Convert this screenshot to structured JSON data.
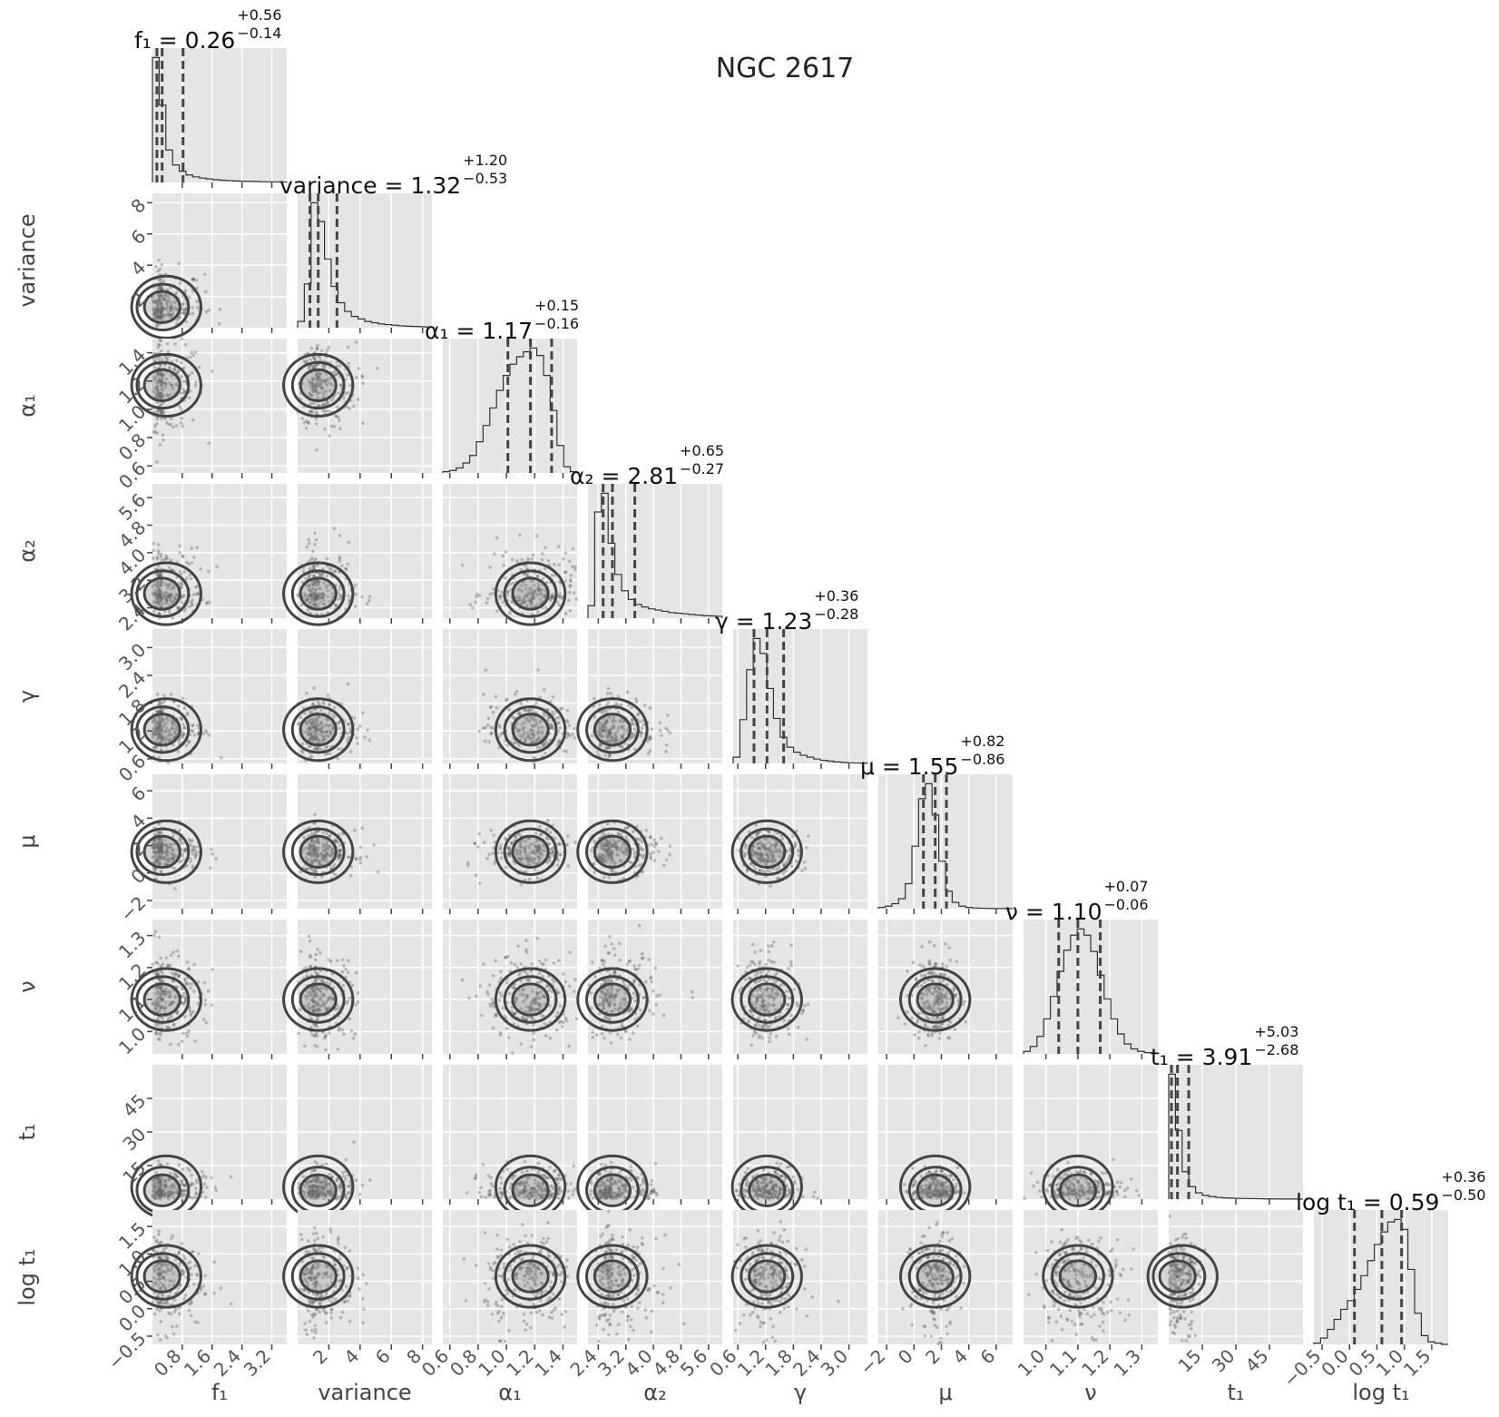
{
  "title": "NGC 2617",
  "chart_data": {
    "type": "corner",
    "parameters": [
      {
        "key": "f1",
        "label": "f₁",
        "median": "0.26",
        "plus": "+0.56",
        "minus": "−0.14",
        "range": [
          0.0,
          3.6
        ],
        "ticks": [
          "0.8",
          "1.6",
          "2.4",
          "3.2"
        ],
        "tickvals": [
          0.8,
          1.6,
          2.4,
          3.2
        ],
        "quantiles": [
          0.12,
          0.26,
          0.82
        ],
        "hist": [
          1.0,
          0.62,
          0.26,
          0.14,
          0.09,
          0.06,
          0.045,
          0.035,
          0.028,
          0.022,
          0.018,
          0.015,
          0.012,
          0.01,
          0.009,
          0.008,
          0.006,
          0.005,
          0.004,
          0.003
        ]
      },
      {
        "key": "variance",
        "label": "variance",
        "median": "1.32",
        "plus": "+1.20",
        "minus": "−0.53",
        "range": [
          0.0,
          8.6
        ],
        "ticks": [
          "2",
          "4",
          "6",
          "8"
        ],
        "tickvals": [
          2,
          4,
          6,
          8
        ],
        "quantiles": [
          0.79,
          1.32,
          2.52
        ],
        "hist": [
          0.05,
          0.35,
          1.0,
          0.85,
          0.55,
          0.33,
          0.2,
          0.13,
          0.09,
          0.07,
          0.05,
          0.04,
          0.03,
          0.025,
          0.02,
          0.015,
          0.012,
          0.01,
          0.008,
          0.006
        ]
      },
      {
        "key": "alpha1",
        "label": "α₁",
        "median": "1.17",
        "plus": "+0.15",
        "minus": "−0.16",
        "range": [
          0.55,
          1.5
        ],
        "ticks": [
          "0.6",
          "0.8",
          "1.0",
          "1.2",
          "1.4"
        ],
        "tickvals": [
          0.6,
          0.8,
          1.0,
          1.2,
          1.4
        ],
        "quantiles": [
          1.01,
          1.17,
          1.32
        ],
        "hist": [
          0.01,
          0.02,
          0.04,
          0.08,
          0.14,
          0.25,
          0.38,
          0.52,
          0.66,
          0.78,
          0.87,
          0.93,
          0.97,
          1.0,
          0.94,
          0.78,
          0.5,
          0.22,
          0.05,
          0.01
        ]
      },
      {
        "key": "alpha2",
        "label": "α₂",
        "median": "2.81",
        "plus": "+0.65",
        "minus": "−0.27",
        "range": [
          2.1,
          6.0
        ],
        "ticks": [
          "2.4",
          "3.2",
          "4.0",
          "4.8",
          "5.6"
        ],
        "tickvals": [
          2.4,
          3.2,
          4.0,
          4.8,
          5.6
        ],
        "quantiles": [
          2.54,
          2.81,
          3.46
        ],
        "hist": [
          0.1,
          0.85,
          1.0,
          0.6,
          0.35,
          0.22,
          0.15,
          0.11,
          0.09,
          0.075,
          0.065,
          0.055,
          0.045,
          0.04,
          0.035,
          0.03,
          0.025,
          0.02,
          0.018,
          0.015
        ]
      },
      {
        "key": "gamma",
        "label": "γ",
        "median": "1.23",
        "plus": "+0.36",
        "minus": "−0.28",
        "range": [
          0.5,
          3.4
        ],
        "ticks": [
          "0.6",
          "1.2",
          "1.8",
          "2.4",
          "3.0"
        ],
        "tickvals": [
          0.6,
          1.2,
          1.8,
          2.4,
          3.0
        ],
        "quantiles": [
          0.95,
          1.23,
          1.59
        ],
        "hist": [
          0.05,
          0.35,
          0.75,
          1.0,
          0.88,
          0.6,
          0.36,
          0.21,
          0.13,
          0.09,
          0.065,
          0.05,
          0.035,
          0.025,
          0.018,
          0.012,
          0.008,
          0.005,
          0.003,
          0.002
        ]
      },
      {
        "key": "mu",
        "label": "μ",
        "median": "1.55",
        "plus": "+0.82",
        "minus": "−0.86",
        "range": [
          -2.6,
          7.2
        ],
        "ticks": [
          "−2",
          "0",
          "2",
          "4",
          "6"
        ],
        "tickvals": [
          -2,
          0,
          2,
          4,
          6
        ],
        "quantiles": [
          0.69,
          1.55,
          2.37
        ],
        "hist": [
          0.01,
          0.02,
          0.04,
          0.08,
          0.2,
          0.5,
          0.88,
          1.0,
          0.75,
          0.38,
          0.14,
          0.05,
          0.02,
          0.01,
          0.005,
          0.003,
          0.002,
          0.001,
          0.001,
          0.0
        ]
      },
      {
        "key": "nu",
        "label": "ν",
        "median": "1.10",
        "plus": "+0.07",
        "minus": "−0.06",
        "range": [
          0.93,
          1.35
        ],
        "ticks": [
          "1.0",
          "1.1",
          "1.2",
          "1.3"
        ],
        "tickvals": [
          1.0,
          1.1,
          1.2,
          1.3
        ],
        "quantiles": [
          1.04,
          1.1,
          1.17
        ],
        "hist": [
          0.02,
          0.06,
          0.14,
          0.28,
          0.46,
          0.66,
          0.83,
          0.95,
          1.0,
          0.95,
          0.82,
          0.63,
          0.44,
          0.28,
          0.16,
          0.08,
          0.04,
          0.02,
          0.01,
          0.005
        ]
      },
      {
        "key": "t1",
        "label": "t₁",
        "median": "3.91",
        "plus": "+5.03",
        "minus": "−2.68",
        "range": [
          0.0,
          60.0
        ],
        "ticks": [
          "15",
          "30",
          "45"
        ],
        "tickvals": [
          15,
          30,
          45
        ],
        "quantiles": [
          1.23,
          3.91,
          8.94
        ],
        "hist": [
          1.0,
          0.55,
          0.22,
          0.1,
          0.05,
          0.03,
          0.02,
          0.014,
          0.01,
          0.008,
          0.006,
          0.005,
          0.004,
          0.003,
          0.002,
          0.002,
          0.001,
          0.001,
          0.001,
          0.0
        ]
      },
      {
        "key": "logt1",
        "label": "log t₁",
        "median": "0.59",
        "plus": "+0.36",
        "minus": "−0.50",
        "range": [
          -0.65,
          1.8
        ],
        "ticks": [
          "−0.5",
          "0.0",
          "0.5",
          "1.0",
          "1.5"
        ],
        "tickvals": [
          -0.5,
          0.0,
          0.5,
          1.0,
          1.5
        ],
        "quantiles": [
          0.09,
          0.59,
          0.95
        ],
        "hist": [
          0.01,
          0.05,
          0.12,
          0.2,
          0.28,
          0.35,
          0.44,
          0.55,
          0.67,
          0.8,
          0.9,
          0.98,
          1.0,
          0.92,
          0.6,
          0.25,
          0.07,
          0.02,
          0.01,
          0.0
        ]
      }
    ],
    "grid": true,
    "style": "ggplot grey panels, white gridlines"
  }
}
